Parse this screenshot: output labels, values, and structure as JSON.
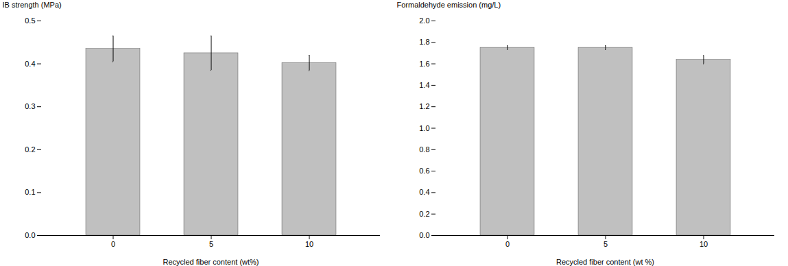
{
  "chart_data": [
    {
      "type": "bar",
      "categories": [
        "0",
        "5",
        "10"
      ],
      "values": [
        0.435,
        0.425,
        0.402
      ],
      "errors": [
        0.03,
        0.04,
        0.018
      ],
      "xlabel": "Recycled fiber content (wt%)",
      "ylabel": "IB strength (MPa)",
      "ylim": [
        0.0,
        0.5
      ],
      "yticks": [
        {
          "value": 0,
          "label": "0.0"
        },
        0.1,
        0.2,
        0.3,
        0.4,
        0.5
      ],
      "color": "#c0c0c0",
      "grid": false
    },
    {
      "type": "bar",
      "categories": [
        "0",
        "5",
        "10"
      ],
      "values": [
        1.75,
        1.75,
        1.638
      ],
      "errors": [
        0.018,
        0.018,
        0.038
      ],
      "xlabel": "Recycled fiber content (wt %)",
      "ylabel": "Formaldehyde emission (mg/L)",
      "ylim": [
        0.0,
        2.0
      ],
      "yticks": [
        {
          "value": 0,
          "label": "0.0"
        },
        0.2,
        0.4,
        0.6,
        0.8,
        {
          "value": 1,
          "label": "1.0"
        },
        1.2,
        1.4,
        1.6,
        1.8,
        {
          "value": 2,
          "label": "2.0"
        }
      ],
      "color": "#c0c0c0",
      "grid": false
    }
  ]
}
